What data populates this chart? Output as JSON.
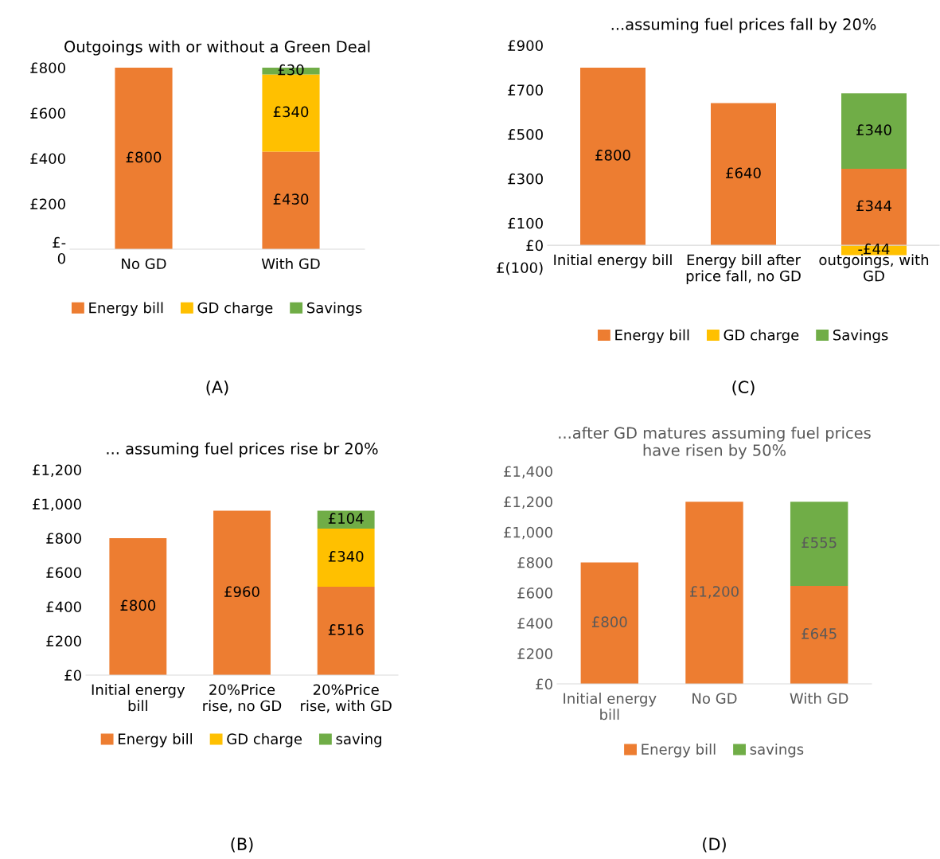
{
  "chart_data": [
    {
      "type": "bar",
      "stacked": true,
      "title": "Outgoings with or without a Green Deal",
      "categories": [
        "No GD",
        "With GD"
      ],
      "series": [
        {
          "name": "Energy bill",
          "color": "#ed7d31",
          "values": [
            800,
            430
          ],
          "value_labels": [
            "£800",
            "£430"
          ]
        },
        {
          "name": "GD charge",
          "color": "#ffc000",
          "values": [
            null,
            340
          ],
          "value_labels": [
            null,
            "£340"
          ]
        },
        {
          "name": "Savings",
          "color": "#70ad47",
          "values": [
            null,
            30
          ],
          "value_labels": [
            null,
            "£30"
          ]
        }
      ],
      "ylim": [
        0,
        800
      ],
      "yticks": [
        {
          "value": 0,
          "label": "£-\n0"
        },
        {
          "value": 200,
          "label": "£200"
        },
        {
          "value": 400,
          "label": "£400"
        },
        {
          "value": 600,
          "label": "£600"
        },
        {
          "value": 800,
          "label": "£800"
        }
      ],
      "grid": false,
      "legend": "bottom",
      "annotations": [
        "(A)"
      ]
    },
    {
      "type": "bar",
      "stacked": true,
      "title": "...assuming fuel prices fall by 20%",
      "categories": [
        "Initial energy bill",
        "Energy bill after\nprice fall, no GD",
        "outgoings, with\nGD"
      ],
      "series": [
        {
          "name": "Energy bill",
          "color": "#ed7d31",
          "values": [
            800,
            640,
            344
          ],
          "value_labels": [
            "£800",
            "£640",
            "£344"
          ]
        },
        {
          "name": "GD charge",
          "color": "#ffc000",
          "values": [
            null,
            null,
            -44
          ],
          "value_labels": [
            null,
            null,
            "-£44"
          ]
        },
        {
          "name": "Savings",
          "color": "#70ad47",
          "values": [
            null,
            null,
            340
          ],
          "value_labels": [
            null,
            null,
            "£340"
          ]
        }
      ],
      "ylim": [
        -100,
        900
      ],
      "yticks": [
        {
          "value": -100,
          "label": "£(100)"
        },
        {
          "value": 0,
          "label": "£0"
        },
        {
          "value": 100,
          "label": "£100"
        },
        {
          "value": 300,
          "label": "£300"
        },
        {
          "value": 500,
          "label": "£500"
        },
        {
          "value": 700,
          "label": "£700"
        },
        {
          "value": 900,
          "label": "£900"
        }
      ],
      "grid": false,
      "legend": "bottom",
      "annotations": [
        "(C)"
      ]
    },
    {
      "type": "bar",
      "stacked": true,
      "title": "... assuming fuel prices rise br 20%",
      "categories": [
        "Initial energy\nbill",
        "20%Price\nrise, no GD",
        "20%Price\nrise, with GD"
      ],
      "series": [
        {
          "name": "Energy bill",
          "color": "#ed7d31",
          "values": [
            800,
            960,
            516
          ],
          "value_labels": [
            "£800",
            "£960",
            "£516"
          ]
        },
        {
          "name": "GD charge",
          "color": "#ffc000",
          "values": [
            null,
            null,
            340
          ],
          "value_labels": [
            null,
            null,
            "£340"
          ]
        },
        {
          "name": "saving",
          "color": "#70ad47",
          "values": [
            null,
            null,
            104
          ],
          "value_labels": [
            null,
            null,
            "£104"
          ]
        }
      ],
      "ylim": [
        0,
        1200
      ],
      "yticks": [
        {
          "value": 0,
          "label": "£0"
        },
        {
          "value": 200,
          "label": "£200"
        },
        {
          "value": 400,
          "label": "£400"
        },
        {
          "value": 600,
          "label": "£600"
        },
        {
          "value": 800,
          "label": "£800"
        },
        {
          "value": 1000,
          "label": "£1,000"
        },
        {
          "value": 1200,
          "label": "£1,200"
        }
      ],
      "grid": false,
      "legend": "bottom",
      "annotations": [
        "(B)"
      ]
    },
    {
      "type": "bar",
      "stacked": true,
      "title": "...after GD matures assuming fuel prices\nhave risen by 50%",
      "categories": [
        "Initial energy\nbill",
        "No GD",
        "With GD"
      ],
      "series": [
        {
          "name": "Energy bill",
          "color": "#ed7d31",
          "values": [
            800,
            1200,
            645
          ],
          "value_labels": [
            "£800",
            "£1,200",
            "£645"
          ]
        },
        {
          "name": "savings",
          "color": "#70ad47",
          "values": [
            null,
            null,
            555
          ],
          "value_labels": [
            null,
            null,
            "£555"
          ]
        }
      ],
      "ylim": [
        0,
        1400
      ],
      "yticks": [
        {
          "value": 0,
          "label": "£0"
        },
        {
          "value": 200,
          "label": "£200"
        },
        {
          "value": 400,
          "label": "£400"
        },
        {
          "value": 600,
          "label": "£600"
        },
        {
          "value": 800,
          "label": "£800"
        },
        {
          "value": 1000,
          "label": "£1,000"
        },
        {
          "value": 1200,
          "label": "£1,200"
        },
        {
          "value": 1400,
          "label": "£1,400"
        }
      ],
      "grid": false,
      "legend": "bottom",
      "annotations": [
        "(D)"
      ]
    }
  ]
}
